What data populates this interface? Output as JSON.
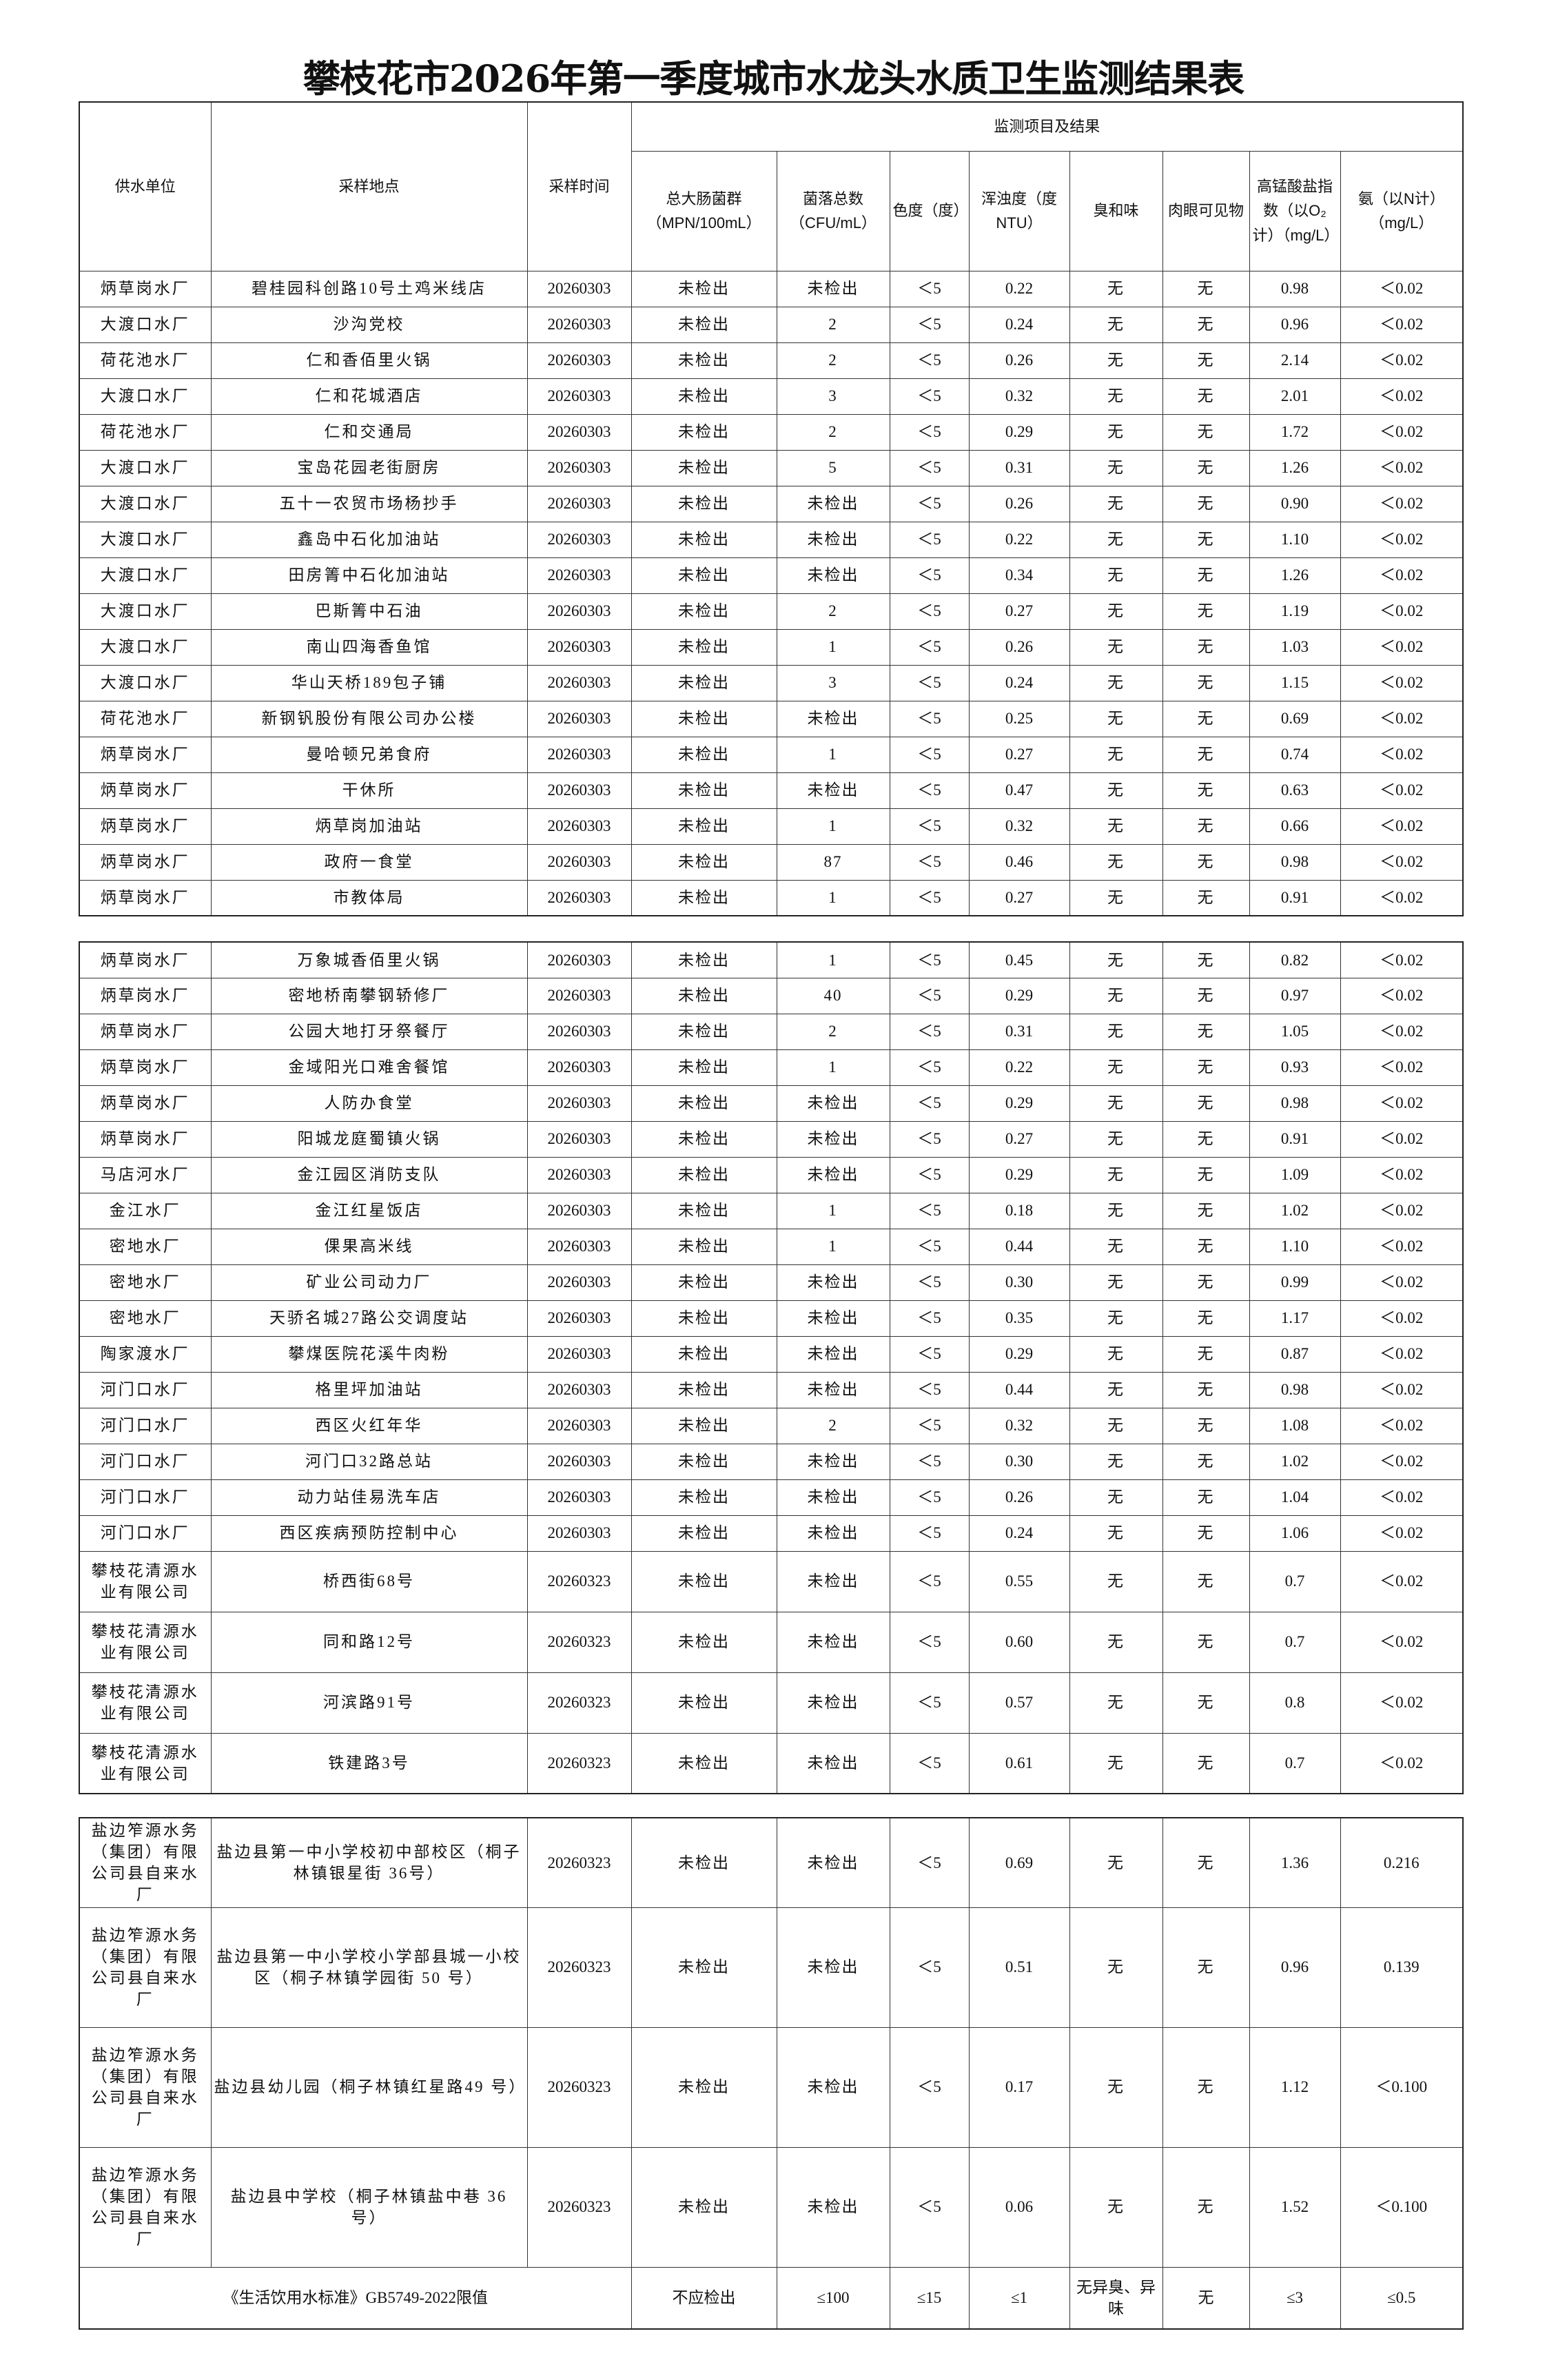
{
  "title": "攀枝花市2026年第一季度城市水龙头水质卫生监测结果表",
  "header": {
    "supplier": "供水单位",
    "location": "采样地点",
    "date": "采样时间",
    "group": "监测项目及结果",
    "coliform": "总大肠菌群（MPN/100mL）",
    "colony": "菌落总数（CFU/mL）",
    "color": "色度（度）",
    "turbidity": "浑浊度（度NTU）",
    "odor": "臭和味",
    "visible": "肉眼可见物",
    "permanganate": "高锰酸盐指数（以O₂计）（mg/L）",
    "ammonia": "氨（以N计）（mg/L）"
  },
  "sections": [
    {
      "rows": [
        [
          "炳草岗水厂",
          "碧桂园科创路10号土鸡米线店",
          "20260303",
          "未检出",
          "未检出",
          "＜5",
          "0.22",
          "无",
          "无",
          "0.98",
          "＜0.02"
        ],
        [
          "大渡口水厂",
          "沙沟党校",
          "20260303",
          "未检出",
          "2",
          "＜5",
          "0.24",
          "无",
          "无",
          "0.96",
          "＜0.02"
        ],
        [
          "荷花池水厂",
          "仁和香佰里火锅",
          "20260303",
          "未检出",
          "2",
          "＜5",
          "0.26",
          "无",
          "无",
          "2.14",
          "＜0.02"
        ],
        [
          "大渡口水厂",
          "仁和花城酒店",
          "20260303",
          "未检出",
          "3",
          "＜5",
          "0.32",
          "无",
          "无",
          "2.01",
          "＜0.02"
        ],
        [
          "荷花池水厂",
          "仁和交通局",
          "20260303",
          "未检出",
          "2",
          "＜5",
          "0.29",
          "无",
          "无",
          "1.72",
          "＜0.02"
        ],
        [
          "大渡口水厂",
          "宝岛花园老街厨房",
          "20260303",
          "未检出",
          "5",
          "＜5",
          "0.31",
          "无",
          "无",
          "1.26",
          "＜0.02"
        ],
        [
          "大渡口水厂",
          "五十一农贸市场杨抄手",
          "20260303",
          "未检出",
          "未检出",
          "＜5",
          "0.26",
          "无",
          "无",
          "0.90",
          "＜0.02"
        ],
        [
          "大渡口水厂",
          "鑫岛中石化加油站",
          "20260303",
          "未检出",
          "未检出",
          "＜5",
          "0.22",
          "无",
          "无",
          "1.10",
          "＜0.02"
        ],
        [
          "大渡口水厂",
          "田房箐中石化加油站",
          "20260303",
          "未检出",
          "未检出",
          "＜5",
          "0.34",
          "无",
          "无",
          "1.26",
          "＜0.02"
        ],
        [
          "大渡口水厂",
          "巴斯箐中石油",
          "20260303",
          "未检出",
          "2",
          "＜5",
          "0.27",
          "无",
          "无",
          "1.19",
          "＜0.02"
        ],
        [
          "大渡口水厂",
          "南山四海香鱼馆",
          "20260303",
          "未检出",
          "1",
          "＜5",
          "0.26",
          "无",
          "无",
          "1.03",
          "＜0.02"
        ],
        [
          "大渡口水厂",
          "华山天桥189包子铺",
          "20260303",
          "未检出",
          "3",
          "＜5",
          "0.24",
          "无",
          "无",
          "1.15",
          "＜0.02"
        ],
        [
          "荷花池水厂",
          "新钢钒股份有限公司办公楼",
          "20260303",
          "未检出",
          "未检出",
          "＜5",
          "0.25",
          "无",
          "无",
          "0.69",
          "＜0.02"
        ],
        [
          "炳草岗水厂",
          "曼哈顿兄弟食府",
          "20260303",
          "未检出",
          "1",
          "＜5",
          "0.27",
          "无",
          "无",
          "0.74",
          "＜0.02"
        ],
        [
          "炳草岗水厂",
          "干休所",
          "20260303",
          "未检出",
          "未检出",
          "＜5",
          "0.47",
          "无",
          "无",
          "0.63",
          "＜0.02"
        ],
        [
          "炳草岗水厂",
          "炳草岗加油站",
          "20260303",
          "未检出",
          "1",
          "＜5",
          "0.32",
          "无",
          "无",
          "0.66",
          "＜0.02"
        ],
        [
          "炳草岗水厂",
          "政府一食堂",
          "20260303",
          "未检出",
          "87",
          "＜5",
          "0.46",
          "无",
          "无",
          "0.98",
          "＜0.02"
        ],
        [
          "炳草岗水厂",
          "市教体局",
          "20260303",
          "未检出",
          "1",
          "＜5",
          "0.27",
          "无",
          "无",
          "0.91",
          "＜0.02"
        ]
      ]
    },
    {
      "rows": [
        [
          "炳草岗水厂",
          "万象城香佰里火锅",
          "20260303",
          "未检出",
          "1",
          "＜5",
          "0.45",
          "无",
          "无",
          "0.82",
          "＜0.02"
        ],
        [
          "炳草岗水厂",
          "密地桥南攀钢轿修厂",
          "20260303",
          "未检出",
          "40",
          "＜5",
          "0.29",
          "无",
          "无",
          "0.97",
          "＜0.02"
        ],
        [
          "炳草岗水厂",
          "公园大地打牙祭餐厅",
          "20260303",
          "未检出",
          "2",
          "＜5",
          "0.31",
          "无",
          "无",
          "1.05",
          "＜0.02"
        ],
        [
          "炳草岗水厂",
          "金域阳光口难舍餐馆",
          "20260303",
          "未检出",
          "1",
          "＜5",
          "0.22",
          "无",
          "无",
          "0.93",
          "＜0.02"
        ],
        [
          "炳草岗水厂",
          "人防办食堂",
          "20260303",
          "未检出",
          "未检出",
          "＜5",
          "0.29",
          "无",
          "无",
          "0.98",
          "＜0.02"
        ],
        [
          "炳草岗水厂",
          "阳城龙庭蜀镇火锅",
          "20260303",
          "未检出",
          "未检出",
          "＜5",
          "0.27",
          "无",
          "无",
          "0.91",
          "＜0.02"
        ],
        [
          "马店河水厂",
          "金江园区消防支队",
          "20260303",
          "未检出",
          "未检出",
          "＜5",
          "0.29",
          "无",
          "无",
          "1.09",
          "＜0.02"
        ],
        [
          "金江水厂",
          "金江红星饭店",
          "20260303",
          "未检出",
          "1",
          "＜5",
          "0.18",
          "无",
          "无",
          "1.02",
          "＜0.02"
        ],
        [
          "密地水厂",
          "倮果高米线",
          "20260303",
          "未检出",
          "1",
          "＜5",
          "0.44",
          "无",
          "无",
          "1.10",
          "＜0.02"
        ],
        [
          "密地水厂",
          "矿业公司动力厂",
          "20260303",
          "未检出",
          "未检出",
          "＜5",
          "0.30",
          "无",
          "无",
          "0.99",
          "＜0.02"
        ],
        [
          "密地水厂",
          "天骄名城27路公交调度站",
          "20260303",
          "未检出",
          "未检出",
          "＜5",
          "0.35",
          "无",
          "无",
          "1.17",
          "＜0.02"
        ],
        [
          "陶家渡水厂",
          "攀煤医院花溪牛肉粉",
          "20260303",
          "未检出",
          "未检出",
          "＜5",
          "0.29",
          "无",
          "无",
          "0.87",
          "＜0.02"
        ],
        [
          "河门口水厂",
          "格里坪加油站",
          "20260303",
          "未检出",
          "未检出",
          "＜5",
          "0.44",
          "无",
          "无",
          "0.98",
          "＜0.02"
        ],
        [
          "河门口水厂",
          "西区火红年华",
          "20260303",
          "未检出",
          "2",
          "＜5",
          "0.32",
          "无",
          "无",
          "1.08",
          "＜0.02"
        ],
        [
          "河门口水厂",
          "河门口32路总站",
          "20260303",
          "未检出",
          "未检出",
          "＜5",
          "0.30",
          "无",
          "无",
          "1.02",
          "＜0.02"
        ],
        [
          "河门口水厂",
          "动力站佳易洗车店",
          "20260303",
          "未检出",
          "未检出",
          "＜5",
          "0.26",
          "无",
          "无",
          "1.04",
          "＜0.02"
        ],
        [
          "河门口水厂",
          "西区疾病预防控制中心",
          "20260303",
          "未检出",
          "未检出",
          "＜5",
          "0.24",
          "无",
          "无",
          "1.06",
          "＜0.02"
        ],
        [
          "攀枝花清源水业有限公司",
          "桥西街68号",
          "20260323",
          "未检出",
          "未检出",
          "＜5",
          "0.55",
          "无",
          "无",
          "0.7",
          "＜0.02"
        ],
        [
          "攀枝花清源水业有限公司",
          "同和路12号",
          "20260323",
          "未检出",
          "未检出",
          "＜5",
          "0.60",
          "无",
          "无",
          "0.7",
          "＜0.02"
        ],
        [
          "攀枝花清源水业有限公司",
          "河滨路91号",
          "20260323",
          "未检出",
          "未检出",
          "＜5",
          "0.57",
          "无",
          "无",
          "0.8",
          "＜0.02"
        ],
        [
          "攀枝花清源水业有限公司",
          "铁建路3号",
          "20260323",
          "未检出",
          "未检出",
          "＜5",
          "0.61",
          "无",
          "无",
          "0.7",
          "＜0.02"
        ]
      ]
    },
    {
      "rows": [
        [
          "盐边笮源水务（集团）有限公司县自来水厂",
          "盐边县第一中小学校初中部校区（桐子林镇银星街 36号）",
          "20260323",
          "未检出",
          "未检出",
          "＜5",
          "0.69",
          "无",
          "无",
          "1.36",
          "0.216"
        ],
        [
          "盐边笮源水务（集团）有限公司县自来水厂",
          "盐边县第一中小学校小学部县城一小校区（桐子林镇学园街 50 号）",
          "20260323",
          "未检出",
          "未检出",
          "＜5",
          "0.51",
          "无",
          "无",
          "0.96",
          "0.139"
        ],
        [
          "盐边笮源水务（集团）有限公司县自来水厂",
          "盐边县幼儿园（桐子林镇红星路49 号）",
          "20260323",
          "未检出",
          "未检出",
          "＜5",
          "0.17",
          "无",
          "无",
          "1.12",
          "＜0.100"
        ],
        [
          "盐边笮源水务（集团）有限公司县自来水厂",
          "盐边县中学校（桐子林镇盐中巷 36 号）",
          "20260323",
          "未检出",
          "未检出",
          "＜5",
          "0.06",
          "无",
          "无",
          "1.52",
          "＜0.100"
        ]
      ]
    }
  ],
  "footer": {
    "label": "《生活饮用水标准》GB5749-2022限值",
    "values": [
      "不应检出",
      "≤100",
      "≤15",
      "≤1",
      "无异臭、异味",
      "无",
      "≤3",
      "≤0.5"
    ]
  }
}
